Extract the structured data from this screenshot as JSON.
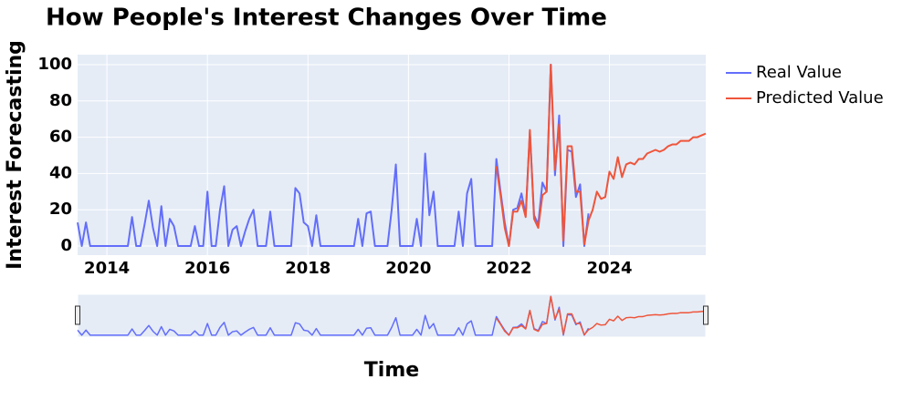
{
  "chart_data": {
    "type": "line",
    "title": "How People's Interest Changes Over Time",
    "xlabel": "Time",
    "ylabel": "Interest Forecasting",
    "x": [
      "2013-06",
      "2013-07",
      "2013-08",
      "2013-09",
      "2013-10",
      "2013-11",
      "2013-12",
      "2014-01",
      "2014-02",
      "2014-03",
      "2014-04",
      "2014-05",
      "2014-06",
      "2014-07",
      "2014-08",
      "2014-09",
      "2014-10",
      "2014-11",
      "2014-12",
      "2015-01",
      "2015-02",
      "2015-03",
      "2015-04",
      "2015-05",
      "2015-06",
      "2015-07",
      "2015-08",
      "2015-09",
      "2015-10",
      "2015-11",
      "2015-12",
      "2016-01",
      "2016-02",
      "2016-03",
      "2016-04",
      "2016-05",
      "2016-06",
      "2016-07",
      "2016-08",
      "2016-09",
      "2016-10",
      "2016-11",
      "2016-12",
      "2017-01",
      "2017-02",
      "2017-03",
      "2017-04",
      "2017-05",
      "2017-06",
      "2017-07",
      "2017-08",
      "2017-09",
      "2017-10",
      "2017-11",
      "2017-12",
      "2018-01",
      "2018-02",
      "2018-03",
      "2018-04",
      "2018-05",
      "2018-06",
      "2018-07",
      "2018-08",
      "2018-09",
      "2018-10",
      "2018-11",
      "2018-12",
      "2019-01",
      "2019-02",
      "2019-03",
      "2019-04",
      "2019-05",
      "2019-06",
      "2019-07",
      "2019-08",
      "2019-09",
      "2019-10",
      "2019-11",
      "2019-12",
      "2020-01",
      "2020-02",
      "2020-03",
      "2020-04",
      "2020-05",
      "2020-06",
      "2020-07",
      "2020-08",
      "2020-09",
      "2020-10",
      "2020-11",
      "2020-12",
      "2021-01",
      "2021-02",
      "2021-03",
      "2021-04",
      "2021-05",
      "2021-06",
      "2021-07",
      "2021-08",
      "2021-09",
      "2021-10",
      "2021-11",
      "2021-12",
      "2022-01",
      "2022-02",
      "2022-03",
      "2022-04",
      "2022-05",
      "2022-06",
      "2022-07",
      "2022-08",
      "2022-09",
      "2022-10",
      "2022-11",
      "2022-12",
      "2023-01",
      "2023-02",
      "2023-03",
      "2023-04",
      "2023-05",
      "2023-06",
      "2023-07",
      "2023-08",
      "2023-09",
      "2023-10",
      "2023-11",
      "2023-12",
      "2024-01",
      "2024-02",
      "2024-03",
      "2024-04",
      "2024-05",
      "2024-06",
      "2024-07",
      "2024-08",
      "2024-09",
      "2024-10",
      "2024-11",
      "2024-12",
      "2025-01",
      "2025-02",
      "2025-03",
      "2025-04",
      "2025-05",
      "2025-06",
      "2025-07",
      "2025-08",
      "2025-09",
      "2025-10",
      "2025-11",
      "2025-12"
    ],
    "series": [
      {
        "name": "Real Value",
        "color": "#636efa",
        "values": [
          13,
          0,
          13,
          0,
          0,
          0,
          0,
          0,
          0,
          0,
          0,
          0,
          0,
          16,
          0,
          0,
          12,
          25,
          10,
          0,
          22,
          0,
          15,
          11,
          0,
          0,
          0,
          0,
          11,
          0,
          0,
          30,
          0,
          0,
          20,
          33,
          0,
          9,
          11,
          0,
          8,
          15,
          20,
          0,
          0,
          0,
          19,
          0,
          0,
          0,
          0,
          0,
          32,
          29,
          13,
          11,
          0,
          17,
          0,
          0,
          0,
          0,
          0,
          0,
          0,
          0,
          0,
          15,
          0,
          18,
          19,
          0,
          0,
          0,
          0,
          20,
          45,
          0,
          0,
          0,
          0,
          15,
          0,
          51,
          17,
          30,
          0,
          0,
          0,
          0,
          0,
          19,
          0,
          29,
          37,
          0,
          0,
          0,
          0,
          0,
          48,
          30,
          13,
          0,
          20,
          21,
          29,
          17,
          63,
          17,
          12,
          35,
          30,
          100,
          39,
          72,
          0,
          53,
          52,
          27,
          34,
          0,
          18,
          null,
          null,
          null,
          null,
          null,
          null,
          null,
          null,
          null,
          null,
          null,
          null,
          null,
          null,
          null,
          null,
          null,
          null,
          null,
          null,
          null,
          null,
          null,
          null,
          null,
          null,
          null,
          null
        ]
      },
      {
        "name": "Predicted Value",
        "color": "#ef553b",
        "values": [
          null,
          null,
          null,
          null,
          null,
          null,
          null,
          null,
          null,
          null,
          null,
          null,
          null,
          null,
          null,
          null,
          null,
          null,
          null,
          null,
          null,
          null,
          null,
          null,
          null,
          null,
          null,
          null,
          null,
          null,
          null,
          null,
          null,
          null,
          null,
          null,
          null,
          null,
          null,
          null,
          null,
          null,
          null,
          null,
          null,
          null,
          null,
          null,
          null,
          null,
          null,
          null,
          null,
          null,
          null,
          null,
          null,
          null,
          null,
          null,
          null,
          null,
          null,
          null,
          null,
          null,
          null,
          null,
          null,
          null,
          null,
          null,
          null,
          null,
          null,
          null,
          null,
          null,
          null,
          null,
          null,
          null,
          null,
          null,
          null,
          null,
          null,
          null,
          null,
          null,
          null,
          null,
          null,
          null,
          null,
          null,
          null,
          null,
          null,
          null,
          44,
          28,
          10,
          0,
          19,
          19,
          25,
          16,
          64,
          15,
          10,
          28,
          30,
          100,
          42,
          67,
          3,
          55,
          55,
          30,
          30,
          1,
          14,
          20,
          30,
          26,
          27,
          41,
          37,
          49,
          38,
          45,
          46,
          45,
          48,
          48,
          51,
          52,
          53,
          52,
          53,
          55,
          56,
          56,
          58,
          58,
          58,
          60,
          60,
          61,
          62
        ]
      }
    ],
    "xlim": [
      "2013-06",
      "2025-12"
    ],
    "xticks": [
      {
        "value": "2014-01",
        "label": "2014"
      },
      {
        "value": "2016-01",
        "label": "2016"
      },
      {
        "value": "2018-01",
        "label": "2018"
      },
      {
        "value": "2020-01",
        "label": "2020"
      },
      {
        "value": "2022-01",
        "label": "2022"
      },
      {
        "value": "2024-01",
        "label": "2024"
      }
    ],
    "ylim": [
      -5,
      105.5
    ],
    "yticks": [
      0,
      20,
      40,
      60,
      80,
      100
    ],
    "grid": true,
    "legend": "right",
    "rangeslider": true
  }
}
